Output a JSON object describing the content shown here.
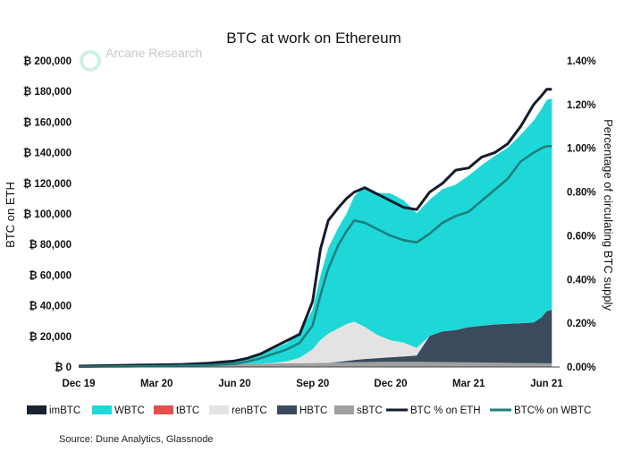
{
  "chart_data": {
    "type": "area",
    "title": "BTC at work on Ethereum",
    "ylabel": "BTC on ETH",
    "y2label": "Percentage of circulating BTC supply",
    "source": "Source: Dune Analytics, Glassnode",
    "logo": "Arcane Research",
    "ylim": [
      0,
      200000
    ],
    "y2lim": [
      0,
      1.4
    ],
    "xlim": [
      0,
      18.5
    ],
    "x_ticks": [
      {
        "label": "Dec 19",
        "x": 0
      },
      {
        "label": "Mar 20",
        "x": 3
      },
      {
        "label": "Jun 20",
        "x": 6
      },
      {
        "label": "Sep 20",
        "x": 9
      },
      {
        "label": "Dec 20",
        "x": 12
      },
      {
        "label": "Mar 21",
        "x": 15
      },
      {
        "label": "Jun 21",
        "x": 18
      }
    ],
    "y_ticks": [
      "₿ 0",
      "₿ 20,000",
      "₿ 40,000",
      "₿ 60,000",
      "₿ 80,000",
      "₿ 100,000",
      "₿ 120,000",
      "₿ 140,000",
      "₿ 160,000",
      "₿ 180,000",
      "₿ 200,000"
    ],
    "y_tick_values": [
      0,
      20000,
      40000,
      60000,
      80000,
      100000,
      120000,
      140000,
      160000,
      180000,
      200000
    ],
    "y2_ticks": [
      "0.00%",
      "0.20%",
      "0.40%",
      "0.60%",
      "0.80%",
      "1.00%",
      "1.20%",
      "1.40%"
    ],
    "y2_tick_values": [
      0,
      0.2,
      0.4,
      0.6,
      0.8,
      1.0,
      1.2,
      1.4
    ],
    "x": [
      0,
      1,
      2,
      3,
      4,
      5,
      6,
      6.5,
      7,
      7.5,
      8,
      8.5,
      9,
      9.3,
      9.6,
      10,
      10.3,
      10.6,
      11,
      11.5,
      12,
      12.5,
      13,
      13.5,
      14,
      14.5,
      15,
      15.5,
      16,
      16.5,
      17,
      17.5,
      17.8,
      18,
      18.2
    ],
    "series": [
      {
        "name": "imBTC",
        "color": "#1a2233",
        "values": [
          0,
          0,
          0,
          0,
          0,
          0,
          0,
          0,
          0,
          0,
          0,
          0,
          0,
          0,
          0,
          0,
          0,
          0,
          0,
          0,
          0,
          0,
          0,
          0,
          0,
          0,
          0,
          0,
          0,
          0,
          0,
          0,
          0,
          0,
          0
        ]
      },
      {
        "name": "WBTC",
        "color": "#1ed8d8",
        "values": [
          0,
          100,
          300,
          500,
          800,
          1200,
          2000,
          4000,
          6000,
          9000,
          12000,
          16000,
          26000,
          42000,
          56000,
          66000,
          72000,
          82000,
          92000,
          93000,
          96000,
          93000,
          88000,
          89000,
          93000,
          95000,
          99000,
          105000,
          110000,
          115000,
          123000,
          132000,
          136000,
          138000,
          138000
        ]
      },
      {
        "name": "tBTC",
        "color": "#e94d4d",
        "values": [
          0,
          0,
          0,
          0,
          0,
          0,
          0,
          0,
          0,
          0,
          0,
          0,
          0,
          0,
          0,
          0,
          0,
          0,
          0,
          0,
          0,
          0,
          0,
          0,
          0,
          0,
          0,
          0,
          0,
          0,
          0,
          0,
          0,
          0,
          0
        ]
      },
      {
        "name": "renBTC",
        "color": "#e3e3e3",
        "values": [
          0,
          0,
          0,
          0,
          0,
          0,
          0,
          0,
          100,
          400,
          1200,
          3500,
          9000,
          15000,
          19000,
          22000,
          24000,
          25000,
          21000,
          15000,
          11000,
          9000,
          5000,
          0,
          0,
          0,
          0,
          0,
          0,
          0,
          0,
          0,
          0,
          0,
          0
        ]
      },
      {
        "name": "HBTC",
        "color": "#3b4a5c",
        "values": [
          0,
          0,
          0,
          0,
          0,
          0,
          0,
          0,
          0,
          0,
          0,
          0,
          0,
          0,
          0,
          500,
          1000,
          1500,
          2000,
          2500,
          3000,
          3500,
          4000,
          17000,
          20000,
          21000,
          23000,
          24000,
          25000,
          25500,
          26000,
          26500,
          30000,
          34000,
          35000
        ]
      },
      {
        "name": "sBTC",
        "color": "#a0a0a0",
        "values": [
          700,
          900,
          1100,
          1300,
          1500,
          1700,
          1900,
          2000,
          2200,
          2300,
          2400,
          2500,
          2600,
          2700,
          2800,
          2900,
          3000,
          3100,
          3200,
          3300,
          3400,
          3400,
          3400,
          3300,
          3200,
          3100,
          3000,
          2900,
          2800,
          2700,
          2600,
          2500,
          2400,
          2400,
          2400
        ]
      },
      {
        "name": "BTC % on ETH",
        "color": "#141c2a",
        "axis": "right",
        "values": [
          0.004,
          0.006,
          0.008,
          0.01,
          0.012,
          0.017,
          0.028,
          0.04,
          0.06,
          0.09,
          0.12,
          0.15,
          0.3,
          0.54,
          0.67,
          0.73,
          0.77,
          0.8,
          0.82,
          0.79,
          0.76,
          0.73,
          0.72,
          0.8,
          0.84,
          0.9,
          0.91,
          0.96,
          0.98,
          1.02,
          1.1,
          1.2,
          1.24,
          1.27,
          1.27
        ]
      },
      {
        "name": "BTC% on WBTC",
        "color": "#1e7f7f",
        "axis": "right",
        "values": [
          0.001,
          0.002,
          0.003,
          0.004,
          0.006,
          0.008,
          0.014,
          0.025,
          0.04,
          0.06,
          0.08,
          0.11,
          0.19,
          0.33,
          0.45,
          0.56,
          0.62,
          0.67,
          0.66,
          0.63,
          0.6,
          0.58,
          0.57,
          0.61,
          0.66,
          0.69,
          0.71,
          0.76,
          0.81,
          0.86,
          0.94,
          0.98,
          1.0,
          1.01,
          1.01
        ]
      }
    ]
  }
}
